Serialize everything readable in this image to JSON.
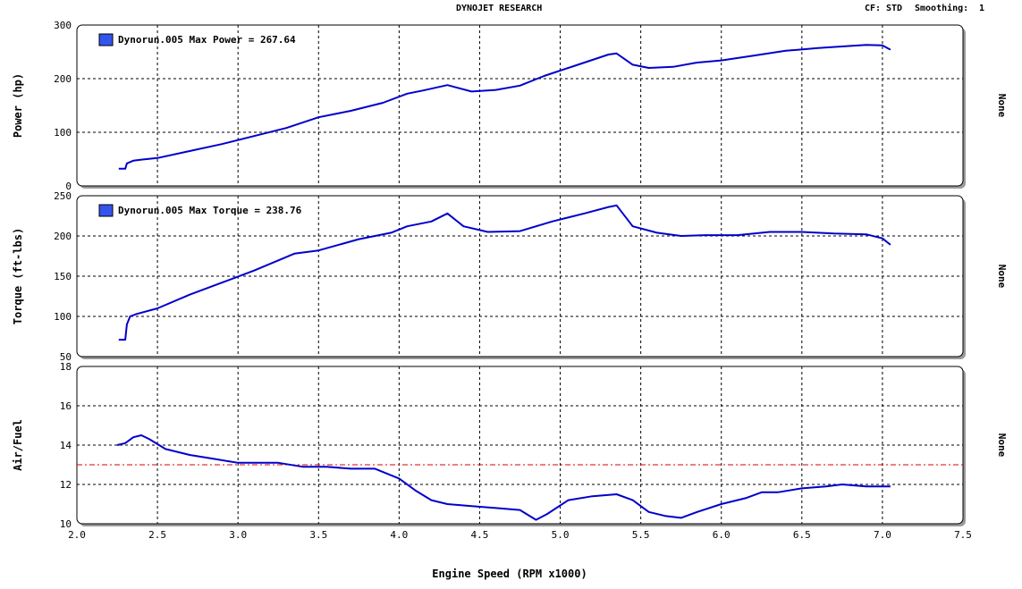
{
  "header": {
    "title": "DYNOJET RESEARCH",
    "cf_label": "CF:",
    "cf_value": "STD",
    "smoothing_label": "Smoothing:",
    "smoothing_value": "1"
  },
  "colors": {
    "run_line": "#0000cc",
    "reference_line": "#dd0000",
    "grid": "#000000",
    "legend_swatch": "#3355ee"
  },
  "chart_data": [
    {
      "type": "line",
      "ylabel": "Power (hp)",
      "right_label": "None",
      "legend": "Dynorun.005 Max Power = 267.64",
      "ylim": [
        0,
        300
      ],
      "yticks": [
        "0",
        "100",
        "200",
        "300"
      ],
      "series": [
        {
          "name": "Dynorun.005",
          "x": [
            2.26,
            2.3,
            2.31,
            2.35,
            2.4,
            2.5,
            2.7,
            2.9,
            3.1,
            3.3,
            3.5,
            3.7,
            3.9,
            4.05,
            4.15,
            4.3,
            4.45,
            4.6,
            4.75,
            4.9,
            5.1,
            5.3,
            5.35,
            5.45,
            5.55,
            5.7,
            5.85,
            6.0,
            6.2,
            6.4,
            6.6,
            6.8,
            6.9,
            7.0,
            7.05
          ],
          "y": [
            32,
            32,
            42,
            47,
            49,
            52,
            65,
            78,
            93,
            108,
            128,
            140,
            155,
            172,
            178,
            188,
            176,
            179,
            187,
            205,
            225,
            245,
            247,
            226,
            220,
            222,
            230,
            234,
            243,
            252,
            257,
            261,
            263,
            262,
            254
          ]
        }
      ]
    },
    {
      "type": "line",
      "ylabel": "Torque (ft-lbs)",
      "right_label": "None",
      "legend": "Dynorun.005 Max Torque = 238.76",
      "ylim": [
        50,
        250
      ],
      "yticks": [
        "50",
        "100",
        "150",
        "200",
        "250"
      ],
      "series": [
        {
          "name": "Dynorun.005",
          "x": [
            2.26,
            2.3,
            2.31,
            2.33,
            2.37,
            2.5,
            2.7,
            2.9,
            3.1,
            3.35,
            3.5,
            3.75,
            3.95,
            4.05,
            4.2,
            4.3,
            4.4,
            4.55,
            4.75,
            4.95,
            5.15,
            5.3,
            5.35,
            5.45,
            5.6,
            5.75,
            5.9,
            6.1,
            6.3,
            6.5,
            6.7,
            6.9,
            7.0,
            7.05
          ],
          "y": [
            71,
            71,
            90,
            100,
            103,
            110,
            127,
            142,
            157,
            178,
            182,
            196,
            204,
            212,
            218,
            228,
            212,
            205,
            206,
            218,
            228,
            236,
            238,
            212,
            204,
            200,
            201,
            201,
            205,
            205,
            203,
            202,
            197,
            189
          ]
        }
      ]
    },
    {
      "type": "line",
      "ylabel": "Air/Fuel",
      "right_label": "None",
      "ylim": [
        10,
        18
      ],
      "yticks": [
        "10",
        "12",
        "14",
        "16",
        "18"
      ],
      "reference_y": 13,
      "xlabel": "Engine Speed (RPM x1000)",
      "xlim": [
        2.0,
        7.5
      ],
      "xticks": [
        "2.0",
        "2.5",
        "3.0",
        "3.5",
        "4.0",
        "4.5",
        "5.0",
        "5.5",
        "6.0",
        "6.5",
        "7.0",
        "7.5"
      ],
      "series": [
        {
          "name": "Dynorun.005",
          "x": [
            2.25,
            2.3,
            2.35,
            2.4,
            2.45,
            2.55,
            2.7,
            2.85,
            3.0,
            3.25,
            3.4,
            3.55,
            3.7,
            3.85,
            4.0,
            4.1,
            4.2,
            4.3,
            4.45,
            4.6,
            4.75,
            4.85,
            4.92,
            5.05,
            5.2,
            5.35,
            5.45,
            5.55,
            5.65,
            5.75,
            5.85,
            6.0,
            6.15,
            6.25,
            6.35,
            6.5,
            6.65,
            6.75,
            6.9,
            7.05
          ],
          "y": [
            14.0,
            14.1,
            14.4,
            14.5,
            14.3,
            13.8,
            13.5,
            13.3,
            13.1,
            13.1,
            12.9,
            12.9,
            12.8,
            12.8,
            12.3,
            11.7,
            11.2,
            11.0,
            10.9,
            10.8,
            10.7,
            10.2,
            10.5,
            11.2,
            11.4,
            11.5,
            11.2,
            10.6,
            10.4,
            10.3,
            10.6,
            11.0,
            11.3,
            11.6,
            11.6,
            11.8,
            11.9,
            12.0,
            11.9,
            11.9
          ]
        }
      ]
    }
  ]
}
